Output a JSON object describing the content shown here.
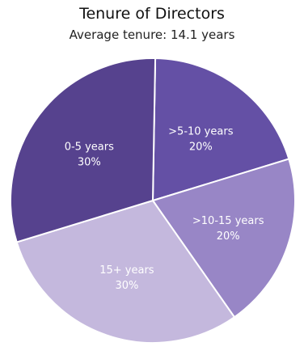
{
  "chart_data": {
    "type": "pie",
    "title": "Tenure of Directors",
    "subtitle": "Average tenure: 14.1 years",
    "slices": [
      {
        "label": "0-5 years",
        "value": 30,
        "value_label": "30%",
        "color": "#56428e",
        "label_color": "#ffffff"
      },
      {
        "label": ">5-10 years",
        "value": 20,
        "value_label": "20%",
        "color": "#6450a5",
        "label_color": "#ffffff"
      },
      {
        "label": ">10-15 years",
        "value": 20,
        "value_label": "20%",
        "color": "#9886c6",
        "label_color": "#222222"
      },
      {
        "label": "15+ years",
        "value": 30,
        "value_label": "30%",
        "color": "#c4b8dd",
        "label_color": "#222222"
      }
    ]
  }
}
